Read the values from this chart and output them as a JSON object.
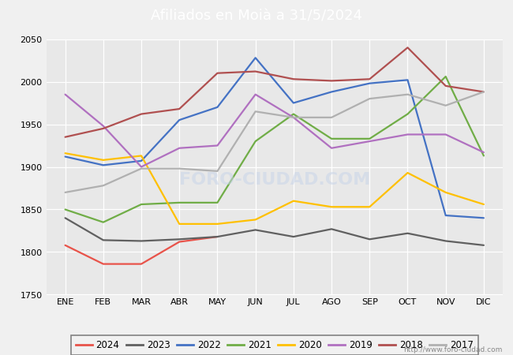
{
  "title": "Afiliados en Moià a 31/5/2024",
  "title_color": "#ffffff",
  "title_bg_color": "#4f86d0",
  "ylim": [
    1750,
    2050
  ],
  "months": [
    "ENE",
    "FEB",
    "MAR",
    "ABR",
    "MAY",
    "JUN",
    "JUL",
    "AGO",
    "SEP",
    "OCT",
    "NOV",
    "DIC"
  ],
  "watermark": "http://www.foro-ciudad.com",
  "series": {
    "2024": {
      "color": "#e8534a",
      "data": [
        1808,
        1786,
        1786,
        1812,
        1818,
        null,
        null,
        null,
        null,
        null,
        null,
        null
      ]
    },
    "2023": {
      "color": "#606060",
      "data": [
        1840,
        1814,
        1813,
        1815,
        1818,
        1826,
        1818,
        1827,
        1815,
        1822,
        1813,
        1808
      ]
    },
    "2022": {
      "color": "#4472c4",
      "data": [
        1912,
        1902,
        1907,
        1955,
        1970,
        2028,
        1975,
        1988,
        1998,
        2002,
        1843,
        1840
      ]
    },
    "2021": {
      "color": "#70ad47",
      "data": [
        1850,
        1835,
        1856,
        1858,
        1858,
        1930,
        1962,
        1933,
        1933,
        1962,
        2006,
        1913
      ]
    },
    "2020": {
      "color": "#ffc000",
      "data": [
        1916,
        1908,
        1913,
        1833,
        1833,
        1838,
        1860,
        1853,
        1853,
        1893,
        1870,
        1856
      ]
    },
    "2019": {
      "color": "#b070c0",
      "data": [
        1985,
        1948,
        1900,
        1922,
        1925,
        1985,
        1958,
        1922,
        1930,
        1938,
        1938,
        1917
      ]
    },
    "2018": {
      "color": "#b05050",
      "data": [
        1935,
        1945,
        1962,
        1968,
        2010,
        2012,
        2003,
        2001,
        2003,
        2040,
        1995,
        1988
      ]
    },
    "2017": {
      "color": "#b0b0b0",
      "data": [
        1870,
        1878,
        1898,
        1898,
        1895,
        1965,
        1958,
        1958,
        1980,
        1985,
        1972,
        1988
      ]
    }
  },
  "plot_bg_color": "#e8e8e8",
  "chart_bg_color": "#f0f0f0",
  "grid_color": "#ffffff",
  "footer_color": "#888888",
  "legend_bg": "#f2f2f2",
  "legend_edge": "#666666"
}
